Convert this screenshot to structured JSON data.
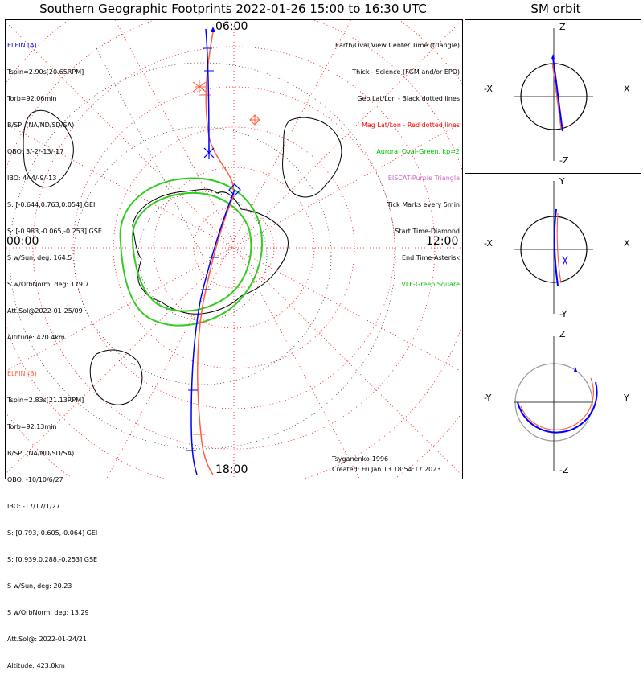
{
  "title": "Southern Geographic Footprints 2022-01-26 15:00 to 16:30 UTC",
  "sm_title": "SM orbit",
  "clock_labels": {
    "top": "06:00",
    "left": "00:00",
    "right": "12:00",
    "bottom": "18:00"
  },
  "elfin_a": {
    "header": "ELFIN (A)",
    "lines": [
      "Tspin=2.90s[20.65RPM]",
      "Torb=92.06min",
      "B/SP: (NA/ND/SD/SA)",
      "OBO: 3/-2/-13/-17",
      "IBO: 4/-4/-9/-13",
      "S: [-0.644,0.763,0.054] GEI",
      "S: [-0.983,-0.065,-0.253] GSE",
      "S w/Sun, deg: 164.5",
      "S w/OrbNorm, deg: 179.7",
      "Att.Sol@2022-01-25/09",
      "Altitude: 420.4km"
    ]
  },
  "elfin_b": {
    "header": "ELFIN (B)",
    "lines": [
      "Tspin=2.83s[21.13RPM]",
      "Torb=92.13min",
      "B/SP: (NA/ND/SD/SA)",
      "OBO: -10/10/6/27",
      "IBO: -17/17/1/27",
      "S: [0.793,-0.605,-0.064] GEI",
      "S: [0.939,0.288,-0.253] GSE",
      "S w/Sun, deg: 20.23",
      "S w/OrbNorm, deg: 13.29",
      "Att.Sol@: 2022-01-24/21",
      "Altitude: 423.0km"
    ]
  },
  "legend": [
    {
      "text": "Earth/Oval View Center Time (triangle)",
      "color": "#000000"
    },
    {
      "text": "Thick - Science (FGM and/or EPD)",
      "color": "#000000"
    },
    {
      "text": "Geo Lat/Lon - Black dotted lines",
      "color": "#000000"
    },
    {
      "text": "Mag Lat/Lon - Red dotted lines",
      "color": "#ff0000"
    },
    {
      "text": "Auroral Oval-Green, kp=2",
      "color": "#00c000"
    },
    {
      "text": "EISCAT-Purple Triangle",
      "color": "#cc66cc"
    },
    {
      "text": "Tick Marks every 5min",
      "color": "#000000"
    },
    {
      "text": "Start Time-Diamond",
      "color": "#000000"
    },
    {
      "text": "End Time-Asterisk",
      "color": "#000000"
    },
    {
      "text": "VLF-Green Square",
      "color": "#00c000"
    }
  ],
  "credits": {
    "author": "Tsyganenko-1996",
    "created": "Created: Fri Jan 13 18:54:17 2023"
  },
  "sm_panels": [
    {
      "top": "Z",
      "bottom": "-Z",
      "left": "-X",
      "right": "X"
    },
    {
      "top": "Y",
      "bottom": "-Y",
      "left": "-X",
      "right": "X"
    },
    {
      "top": "Z",
      "bottom": "-Z",
      "left": "-Y",
      "right": "Y"
    }
  ],
  "colors": {
    "elfin_a": "#0000ff",
    "elfin_b": "#ff6040",
    "oval": "#33cc22",
    "mag_grid": "#ff0000",
    "geo_grid": "#000000"
  }
}
